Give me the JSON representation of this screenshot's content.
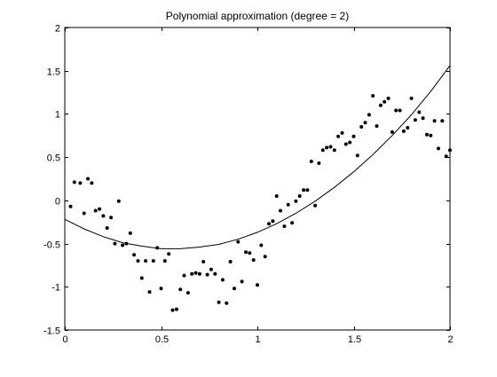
{
  "chart_data": {
    "type": "scatter",
    "title": "Polynomial approximation (degree = 2)",
    "xlabel": "",
    "ylabel": "",
    "xlim": [
      0,
      2
    ],
    "ylim": [
      -1.5,
      2
    ],
    "xticks": [
      0,
      0.5,
      1,
      1.5,
      2
    ],
    "xtick_labels": [
      "0",
      "0.5",
      "1",
      "1.5",
      "2"
    ],
    "yticks": [
      -1.5,
      -1,
      -0.5,
      0,
      0.5,
      1,
      1.5,
      2
    ],
    "ytick_labels": [
      "-1.5",
      "-1",
      "-0.5",
      "0",
      "0.5",
      "1",
      "1.5",
      "2"
    ],
    "grid": false,
    "colors": {
      "points": "#000000",
      "fit_line": "#000000",
      "axes": "#000000"
    },
    "series": [
      {
        "kind": "scatter",
        "marker": "dot",
        "points": [
          [
            0.03,
            -0.07
          ],
          [
            0.05,
            0.21
          ],
          [
            0.08,
            0.2
          ],
          [
            0.1,
            -0.15
          ],
          [
            0.12,
            0.25
          ],
          [
            0.14,
            0.2
          ],
          [
            0.16,
            -0.12
          ],
          [
            0.18,
            -0.1
          ],
          [
            0.2,
            -0.18
          ],
          [
            0.22,
            -0.32
          ],
          [
            0.24,
            -0.2
          ],
          [
            0.26,
            -0.5
          ],
          [
            0.28,
            -0.01
          ],
          [
            0.3,
            -0.52
          ],
          [
            0.32,
            -0.5
          ],
          [
            0.34,
            -0.38
          ],
          [
            0.36,
            -0.63
          ],
          [
            0.38,
            -0.7
          ],
          [
            0.4,
            -0.9
          ],
          [
            0.42,
            -0.7
          ],
          [
            0.44,
            -1.06
          ],
          [
            0.46,
            -0.7
          ],
          [
            0.48,
            -0.55
          ],
          [
            0.5,
            -1.02
          ],
          [
            0.52,
            -0.7
          ],
          [
            0.54,
            -0.62
          ],
          [
            0.56,
            -1.27
          ],
          [
            0.58,
            -1.26
          ],
          [
            0.6,
            -1.03
          ],
          [
            0.62,
            -0.87
          ],
          [
            0.64,
            -1.07
          ],
          [
            0.66,
            -0.85
          ],
          [
            0.68,
            -0.84
          ],
          [
            0.7,
            -0.85
          ],
          [
            0.72,
            -0.71
          ],
          [
            0.74,
            -0.86
          ],
          [
            0.76,
            -0.8
          ],
          [
            0.78,
            -0.85
          ],
          [
            0.8,
            -1.18
          ],
          [
            0.82,
            -0.92
          ],
          [
            0.84,
            -1.19
          ],
          [
            0.86,
            -0.71
          ],
          [
            0.88,
            -1.02
          ],
          [
            0.9,
            -0.48
          ],
          [
            0.92,
            -0.94
          ],
          [
            0.94,
            -0.6
          ],
          [
            0.96,
            -0.61
          ],
          [
            0.98,
            -0.69
          ],
          [
            1.0,
            -0.98
          ],
          [
            1.02,
            -0.52
          ],
          [
            1.04,
            -0.65
          ],
          [
            1.06,
            -0.27
          ],
          [
            1.08,
            -0.24
          ],
          [
            1.1,
            0.05
          ],
          [
            1.12,
            -0.12
          ],
          [
            1.14,
            -0.3
          ],
          [
            1.16,
            -0.05
          ],
          [
            1.18,
            -0.26
          ],
          [
            1.2,
            -0.01
          ],
          [
            1.22,
            0.05
          ],
          [
            1.24,
            0.12
          ],
          [
            1.26,
            0.12
          ],
          [
            1.28,
            0.45
          ],
          [
            1.3,
            -0.06
          ],
          [
            1.32,
            0.43
          ],
          [
            1.34,
            0.58
          ],
          [
            1.36,
            0.61
          ],
          [
            1.38,
            0.62
          ],
          [
            1.4,
            0.58
          ],
          [
            1.42,
            0.74
          ],
          [
            1.44,
            0.78
          ],
          [
            1.46,
            0.65
          ],
          [
            1.48,
            0.67
          ],
          [
            1.5,
            0.74
          ],
          [
            1.52,
            0.52
          ],
          [
            1.54,
            0.85
          ],
          [
            1.56,
            0.9
          ],
          [
            1.58,
            0.99
          ],
          [
            1.6,
            1.21
          ],
          [
            1.62,
            0.86
          ],
          [
            1.64,
            1.1
          ],
          [
            1.66,
            1.14
          ],
          [
            1.68,
            1.18
          ],
          [
            1.7,
            0.79
          ],
          [
            1.72,
            1.04
          ],
          [
            1.74,
            1.04
          ],
          [
            1.76,
            0.8
          ],
          [
            1.78,
            0.84
          ],
          [
            1.8,
            1.18
          ],
          [
            1.82,
            0.93
          ],
          [
            1.84,
            1.02
          ],
          [
            1.86,
            0.95
          ],
          [
            1.88,
            0.76
          ],
          [
            1.9,
            0.75
          ],
          [
            1.92,
            0.92
          ],
          [
            1.94,
            0.6
          ],
          [
            1.96,
            0.92
          ],
          [
            1.98,
            0.51
          ],
          [
            2.0,
            0.58
          ]
        ]
      },
      {
        "kind": "line",
        "x": [
          0,
          0.1,
          0.2,
          0.3,
          0.4,
          0.5,
          0.6,
          0.7,
          0.8,
          0.9,
          1.0,
          1.1,
          1.2,
          1.3,
          1.4,
          1.5,
          1.6,
          1.7,
          1.8,
          1.9,
          2.0
        ],
        "y": [
          -0.22,
          -0.33,
          -0.42,
          -0.49,
          -0.53,
          -0.56,
          -0.56,
          -0.54,
          -0.51,
          -0.45,
          -0.37,
          -0.27,
          -0.15,
          -0.01,
          0.15,
          0.33,
          0.53,
          0.75,
          0.99,
          1.26,
          1.56
        ]
      }
    ]
  }
}
